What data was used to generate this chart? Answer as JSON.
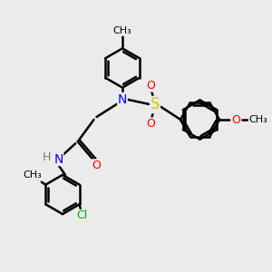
{
  "bg_color": "#ebebeb",
  "bond_color": "#000000",
  "bond_width": 1.8,
  "atom_colors": {
    "N": "#0000ff",
    "O": "#ff0000",
    "S": "#cccc00",
    "Cl": "#00aa00",
    "H": "#777777",
    "C": "#000000"
  },
  "font_size": 9,
  "fig_size": [
    3.0,
    3.0
  ],
  "dpi": 100,
  "xlim": [
    0,
    10
  ],
  "ylim": [
    0,
    10
  ]
}
